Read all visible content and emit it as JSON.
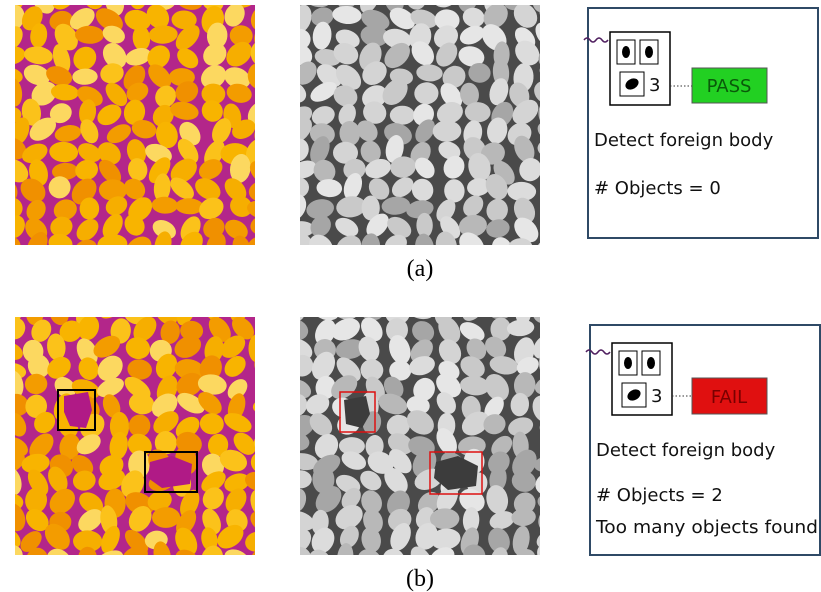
{
  "panels": [
    {
      "caption": "(a)",
      "result": {
        "status": "PASS",
        "icon_count": "3",
        "label": "Detect foreign body",
        "objects": "# Objects = 0"
      }
    },
    {
      "caption": "(b)",
      "result": {
        "status": "FAIL",
        "icon_count": "3",
        "label": "Detect foreign body",
        "objects": "# Objects = 2",
        "message": "Too many objects found"
      }
    }
  ]
}
